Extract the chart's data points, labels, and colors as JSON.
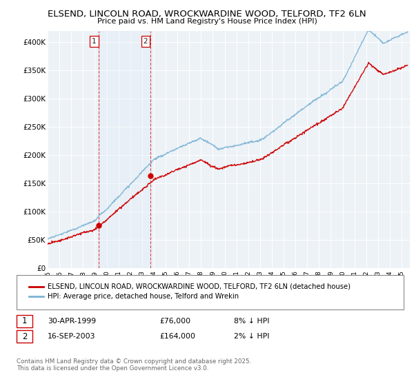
{
  "title1": "ELSEND, LINCOLN ROAD, WROCKWARDINE WOOD, TELFORD, TF2 6LN",
  "title2": "Price paid vs. HM Land Registry's House Price Index (HPI)",
  "ylabel_ticks": [
    "£0",
    "£50K",
    "£100K",
    "£150K",
    "£200K",
    "£250K",
    "£300K",
    "£350K",
    "£400K"
  ],
  "ytick_values": [
    0,
    50000,
    100000,
    150000,
    200000,
    250000,
    300000,
    350000,
    400000
  ],
  "ylim": [
    0,
    420000
  ],
  "xlim_start": 1995.0,
  "xlim_end": 2025.7,
  "purchase1_x": 1999.33,
  "purchase1_y": 76000,
  "purchase2_x": 2003.71,
  "purchase2_y": 164000,
  "legend_line1": "ELSEND, LINCOLN ROAD, WROCKWARDINE WOOD, TELFORD, TF2 6LN (detached house)",
  "legend_line2": "HPI: Average price, detached house, Telford and Wrekin",
  "row1_num": "1",
  "row1_date": "30-APR-1999",
  "row1_price": "£76,000",
  "row1_pct": "8% ↓ HPI",
  "row2_num": "2",
  "row2_date": "16-SEP-2003",
  "row2_price": "£164,000",
  "row2_pct": "2% ↓ HPI",
  "footer": "Contains HM Land Registry data © Crown copyright and database right 2025.\nThis data is licensed under the Open Government Licence v3.0.",
  "hpi_color": "#7ab3d4",
  "price_color": "#cc0000",
  "bg_chart": "#edf2f7",
  "vline_color": "#cc0000",
  "span_color": "#dae8f5",
  "label_border_color": "#cc0000",
  "grid_color": "#ffffff"
}
